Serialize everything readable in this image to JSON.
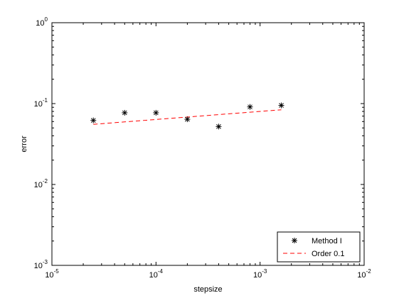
{
  "chart_data": {
    "type": "scatter",
    "x_scale": "log",
    "y_scale": "log",
    "xlabel": "stepsize",
    "ylabel": "error",
    "xlim": [
      1e-05,
      0.01
    ],
    "ylim": [
      0.001,
      1
    ],
    "grid": false,
    "legend_position": "bottom-right",
    "x_ticks": [
      {
        "base": "10",
        "exp": "-5",
        "value": 1e-05
      },
      {
        "base": "10",
        "exp": "-4",
        "value": 0.0001
      },
      {
        "base": "10",
        "exp": "-3",
        "value": 0.001
      },
      {
        "base": "10",
        "exp": "-2",
        "value": 0.01
      }
    ],
    "y_ticks": [
      {
        "base": "10",
        "exp": "-3",
        "value": 0.001
      },
      {
        "base": "10",
        "exp": "-2",
        "value": 0.01
      },
      {
        "base": "10",
        "exp": "-1",
        "value": 0.1
      },
      {
        "base": "10",
        "exp": "0",
        "value": 1
      }
    ],
    "series": [
      {
        "name": "Method I",
        "style": "markers",
        "marker": "asterisk",
        "color": "#000000",
        "x": [
          2.5e-05,
          5e-05,
          0.0001,
          0.0002,
          0.0004,
          0.0008,
          0.0016
        ],
        "y": [
          0.062,
          0.077,
          0.077,
          0.064,
          0.052,
          0.091,
          0.095
        ]
      },
      {
        "name": "Order 0.1",
        "style": "dashed",
        "color": "#ff0000",
        "x": [
          2.5e-05,
          5e-05,
          0.0001,
          0.0002,
          0.0004,
          0.0008,
          0.0016
        ],
        "y": [
          0.0554,
          0.0594,
          0.0636,
          0.0682,
          0.0731,
          0.0783,
          0.0839
        ]
      }
    ]
  }
}
